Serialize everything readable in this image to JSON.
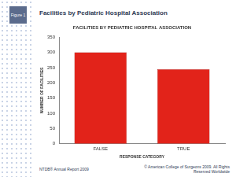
{
  "header": {
    "figure": "Figure 1",
    "title": "Facilities by Pediatric Hospital Association"
  },
  "chart_data": {
    "type": "bar",
    "title": "FACILITIES BY PEDIATRIC HOSPITAL ASSOCIATION",
    "x_label": "RESPONSE CATEGORY",
    "y_label": "NUMBER OF FACILITIES",
    "categories": [
      "FALSE",
      "TRUE"
    ],
    "values": [
      300,
      245
    ],
    "color": "#e2231a",
    "ylim": [
      0,
      350
    ],
    "yticks": [
      0,
      50,
      100,
      150,
      200,
      250,
      300,
      350
    ],
    "grid": false
  },
  "footer": {
    "left": "NTDB® Annual Report 2009",
    "right": "© American College of Surgeons 2009. All Rights Reserved Worldwide"
  }
}
